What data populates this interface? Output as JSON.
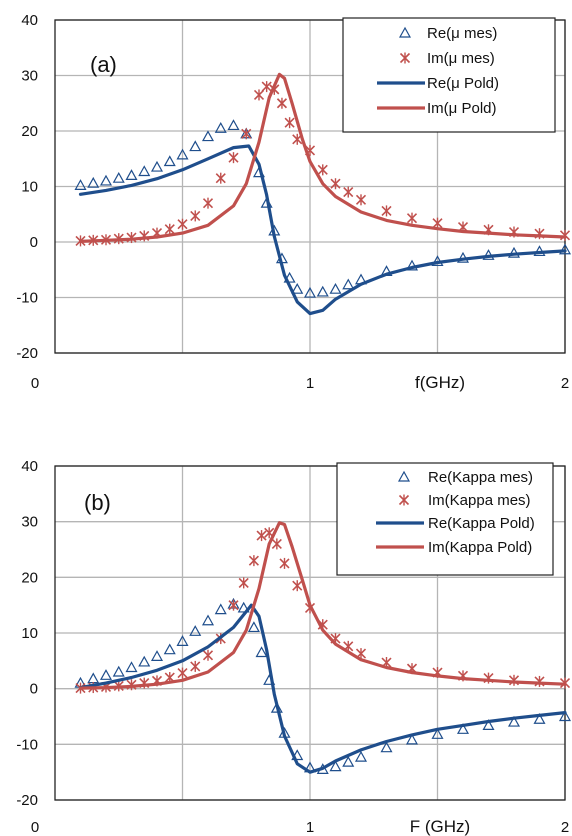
{
  "colors": {
    "blue": "#1F4E8C",
    "red": "#C0504D",
    "grid": "#b5b5b5",
    "frame": "#222222"
  },
  "chart_data": [
    {
      "type": "line",
      "panel_label": "(a)",
      "xlabel": "f(GHz)",
      "ylim": [
        -20,
        40
      ],
      "xlim": [
        0,
        2
      ],
      "yticks": [
        "40",
        "30",
        "20",
        "10",
        "0",
        "-10",
        "-20"
      ],
      "xticks": [
        "0",
        "1",
        "2"
      ],
      "grid": true,
      "legend_position": "top-right",
      "series": [
        {
          "name": "Re(μ mes)",
          "kind": "marker",
          "marker": "triangle",
          "color": "#1F4E8C",
          "x": [
            0.1,
            0.15,
            0.2,
            0.25,
            0.3,
            0.35,
            0.4,
            0.45,
            0.5,
            0.55,
            0.6,
            0.65,
            0.7,
            0.75,
            0.8,
            0.83,
            0.86,
            0.89,
            0.92,
            0.95,
            1.0,
            1.05,
            1.1,
            1.15,
            1.2,
            1.3,
            1.4,
            1.5,
            1.6,
            1.7,
            1.8,
            1.9,
            2.0
          ],
          "y": [
            10.2,
            10.6,
            11.0,
            11.5,
            12.0,
            12.7,
            13.5,
            14.5,
            15.7,
            17.2,
            19.0,
            20.5,
            21.0,
            19.5,
            12.5,
            7.0,
            2.0,
            -3.0,
            -6.5,
            -8.5,
            -9.2,
            -9.0,
            -8.5,
            -7.7,
            -6.8,
            -5.3,
            -4.3,
            -3.5,
            -2.9,
            -2.4,
            -2.0,
            -1.7,
            -1.4
          ]
        },
        {
          "name": "Im(μ mes)",
          "kind": "marker",
          "marker": "star",
          "color": "#C0504D",
          "x": [
            0.1,
            0.15,
            0.2,
            0.25,
            0.3,
            0.35,
            0.4,
            0.45,
            0.5,
            0.55,
            0.6,
            0.65,
            0.7,
            0.75,
            0.8,
            0.83,
            0.86,
            0.89,
            0.92,
            0.95,
            1.0,
            1.05,
            1.1,
            1.15,
            1.2,
            1.3,
            1.4,
            1.5,
            1.6,
            1.7,
            1.8,
            1.9,
            2.0
          ],
          "y": [
            0.2,
            0.3,
            0.4,
            0.6,
            0.8,
            1.1,
            1.6,
            2.3,
            3.2,
            4.7,
            7.0,
            11.5,
            15.2,
            19.5,
            26.5,
            28.0,
            27.5,
            25.0,
            21.5,
            18.5,
            16.5,
            13.0,
            10.5,
            9.0,
            7.6,
            5.6,
            4.3,
            3.4,
            2.7,
            2.2,
            1.8,
            1.5,
            1.2
          ]
        },
        {
          "name": "Re(μ Pold)",
          "kind": "line",
          "color": "#1F4E8C",
          "x": [
            0.1,
            0.2,
            0.3,
            0.4,
            0.5,
            0.6,
            0.7,
            0.76,
            0.8,
            0.83,
            0.86,
            0.9,
            0.95,
            1.0,
            1.05,
            1.1,
            1.2,
            1.3,
            1.4,
            1.5,
            1.6,
            1.7,
            1.8,
            1.9,
            2.0
          ],
          "y": [
            8.6,
            9.3,
            10.2,
            11.4,
            13.0,
            15.0,
            17.0,
            17.3,
            14.0,
            8.5,
            1.0,
            -6.0,
            -10.8,
            -12.9,
            -12.3,
            -10.3,
            -7.6,
            -5.8,
            -4.6,
            -3.7,
            -3.1,
            -2.6,
            -2.2,
            -1.9,
            -1.6
          ]
        },
        {
          "name": "Im(μ Pold)",
          "kind": "line",
          "color": "#C0504D",
          "x": [
            0.1,
            0.2,
            0.3,
            0.4,
            0.5,
            0.6,
            0.7,
            0.75,
            0.8,
            0.84,
            0.88,
            0.9,
            0.93,
            0.97,
            1.0,
            1.05,
            1.1,
            1.2,
            1.3,
            1.4,
            1.5,
            1.6,
            1.7,
            1.8,
            1.9,
            2.0
          ],
          "y": [
            0.1,
            0.3,
            0.5,
            0.9,
            1.6,
            3.0,
            6.5,
            10.5,
            18.0,
            26.0,
            30.2,
            29.5,
            25.0,
            18.5,
            14.5,
            10.5,
            8.2,
            5.4,
            3.9,
            3.0,
            2.4,
            1.9,
            1.6,
            1.3,
            1.1,
            0.9
          ]
        }
      ]
    },
    {
      "type": "line",
      "panel_label": "(b)",
      "xlabel": "F (GHz)",
      "ylim": [
        -20,
        40
      ],
      "xlim": [
        0,
        2
      ],
      "yticks": [
        "40",
        "30",
        "20",
        "10",
        "0",
        "-10",
        "-20"
      ],
      "xticks": [
        "0",
        "1",
        "2"
      ],
      "grid": true,
      "legend_position": "top-right",
      "series": [
        {
          "name": "Re(Kappa mes)",
          "kind": "marker",
          "marker": "triangle",
          "color": "#1F4E8C",
          "x": [
            0.1,
            0.15,
            0.2,
            0.25,
            0.3,
            0.35,
            0.4,
            0.45,
            0.5,
            0.55,
            0.6,
            0.65,
            0.7,
            0.74,
            0.78,
            0.81,
            0.84,
            0.87,
            0.9,
            0.95,
            1.0,
            1.05,
            1.1,
            1.15,
            1.2,
            1.3,
            1.4,
            1.5,
            1.6,
            1.7,
            1.8,
            1.9,
            2.0
          ],
          "y": [
            1.0,
            1.8,
            2.4,
            3.0,
            3.8,
            4.8,
            5.8,
            7.0,
            8.5,
            10.3,
            12.2,
            14.2,
            15.2,
            14.5,
            11.0,
            6.5,
            1.5,
            -3.5,
            -8.0,
            -12.0,
            -14.2,
            -14.5,
            -14.0,
            -13.2,
            -12.3,
            -10.6,
            -9.2,
            -8.2,
            -7.3,
            -6.6,
            -6.0,
            -5.5,
            -5.0
          ]
        },
        {
          "name": "Im(Kappa mes)",
          "kind": "marker",
          "marker": "star",
          "color": "#C0504D",
          "x": [
            0.1,
            0.15,
            0.2,
            0.25,
            0.3,
            0.35,
            0.4,
            0.45,
            0.5,
            0.55,
            0.6,
            0.65,
            0.7,
            0.74,
            0.78,
            0.81,
            0.84,
            0.87,
            0.9,
            0.95,
            1.0,
            1.05,
            1.1,
            1.15,
            1.2,
            1.3,
            1.4,
            1.5,
            1.6,
            1.7,
            1.8,
            1.9,
            2.0
          ],
          "y": [
            0.1,
            0.2,
            0.3,
            0.5,
            0.7,
            1.0,
            1.4,
            2.0,
            2.8,
            4.0,
            6.0,
            9.0,
            15.0,
            19.0,
            23.0,
            27.5,
            28.0,
            26.0,
            22.5,
            18.5,
            14.5,
            11.5,
            9.0,
            7.6,
            6.3,
            4.7,
            3.6,
            2.9,
            2.3,
            1.9,
            1.5,
            1.3,
            1.0
          ]
        },
        {
          "name": "Re(Kappa Pold)",
          "kind": "line",
          "color": "#1F4E8C",
          "x": [
            0.1,
            0.2,
            0.3,
            0.4,
            0.5,
            0.6,
            0.7,
            0.77,
            0.8,
            0.83,
            0.86,
            0.9,
            0.95,
            1.0,
            1.05,
            1.1,
            1.2,
            1.3,
            1.4,
            1.5,
            1.6,
            1.7,
            1.8,
            1.9,
            2.0
          ],
          "y": [
            0.2,
            1.0,
            2.0,
            3.3,
            5.0,
            7.5,
            11.0,
            15.0,
            13.0,
            7.0,
            -1.0,
            -8.5,
            -13.5,
            -15.0,
            -14.3,
            -13.0,
            -11.0,
            -9.5,
            -8.3,
            -7.3,
            -6.6,
            -5.9,
            -5.3,
            -4.8,
            -4.3
          ]
        },
        {
          "name": "Im(Kappa Pold)",
          "kind": "line",
          "color": "#C0504D",
          "x": [
            0.1,
            0.2,
            0.3,
            0.4,
            0.5,
            0.6,
            0.7,
            0.75,
            0.8,
            0.84,
            0.88,
            0.9,
            0.93,
            0.97,
            1.0,
            1.05,
            1.1,
            1.2,
            1.3,
            1.4,
            1.5,
            1.6,
            1.7,
            1.8,
            1.9,
            2.0
          ],
          "y": [
            0.1,
            0.2,
            0.4,
            0.8,
            1.5,
            3.0,
            6.5,
            10.5,
            18.0,
            26.0,
            29.8,
            29.5,
            25.5,
            19.5,
            15.0,
            10.5,
            8.0,
            5.2,
            3.8,
            2.9,
            2.3,
            1.8,
            1.5,
            1.2,
            1.0,
            0.8
          ]
        }
      ]
    }
  ]
}
